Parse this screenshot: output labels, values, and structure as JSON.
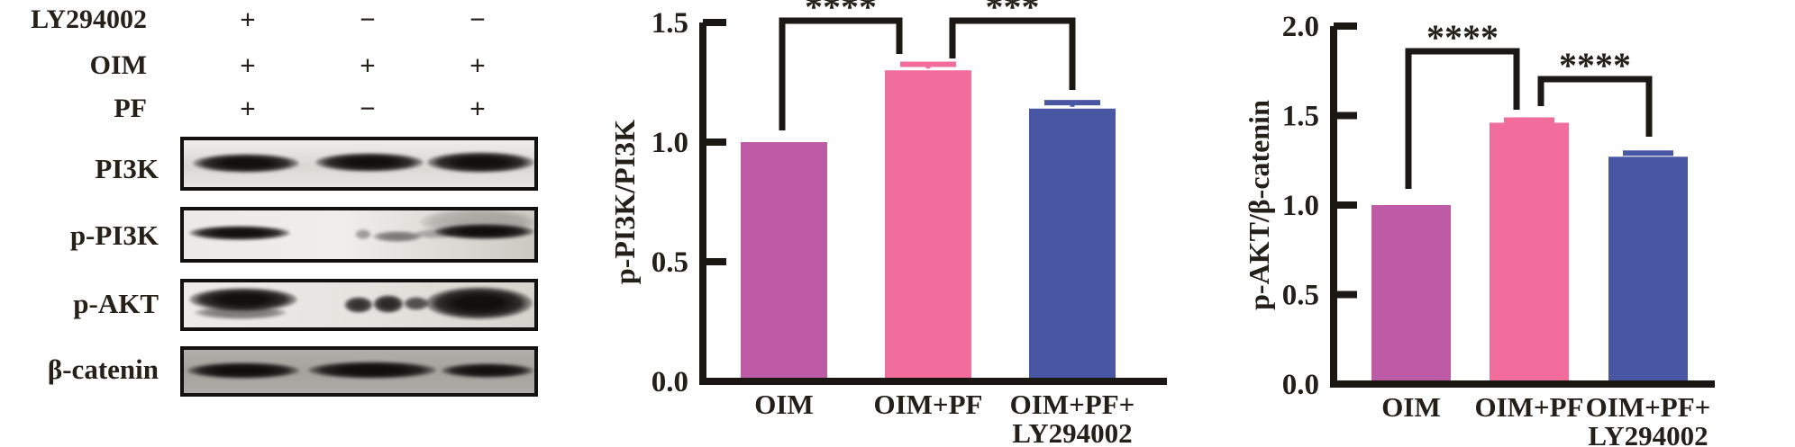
{
  "colors": {
    "ink": "#1b1713",
    "background": "#ffffff"
  },
  "blot": {
    "conditions": [
      {
        "label": "LY294002",
        "signs": [
          "+",
          "−",
          "−"
        ]
      },
      {
        "label": "OIM",
        "signs": [
          "+",
          "+",
          "+"
        ]
      },
      {
        "label": "PF",
        "signs": [
          "+",
          "−",
          "+"
        ]
      }
    ],
    "rows": [
      {
        "label": "PI3K",
        "lanes": [
          "strong",
          "strong",
          "strong"
        ]
      },
      {
        "label": "p-PI3K",
        "lanes": [
          "strong",
          "faint",
          "strong"
        ]
      },
      {
        "label": "p-AKT",
        "lanes": [
          "strong",
          "medium",
          "strong"
        ]
      },
      {
        "label": "β-catenin",
        "lanes": [
          "strong",
          "strong",
          "strong"
        ]
      }
    ]
  },
  "chart_data": [
    {
      "type": "bar",
      "title": "",
      "xlabel": "",
      "ylabel": "p-PI3K/PI3K",
      "categories": [
        "OIM",
        "OIM+PF",
        "OIM+PF+\nLY294002"
      ],
      "values": [
        1.0,
        1.3,
        1.14
      ],
      "errors": [
        0,
        0.025,
        0.025
      ],
      "bar_colors": [
        "#BE5BA7",
        "#F26D9B",
        "#4856A3"
      ],
      "ink": "#1b1713",
      "ylim": [
        0,
        1.5
      ],
      "yticks": [
        "0.0",
        "0.5",
        "1.0",
        "1.5"
      ],
      "grid": false,
      "legend": "none",
      "significance": [
        {
          "between": [
            "OIM",
            "OIM+PF"
          ],
          "label": "****"
        },
        {
          "between": [
            "OIM+PF",
            "OIM+PF+LY294002"
          ],
          "label": "***"
        }
      ]
    },
    {
      "type": "bar",
      "title": "",
      "xlabel": "",
      "ylabel": "p-AKT/β-catenin",
      "categories": [
        "OIM",
        "OIM+PF",
        "OIM+PF+\nLY294002"
      ],
      "values": [
        1.0,
        1.46,
        1.27
      ],
      "errors": [
        0,
        0.015,
        0.02
      ],
      "bar_colors": [
        "#BE5BA7",
        "#F26D9B",
        "#4856A3"
      ],
      "ink": "#1b1713",
      "ylim": [
        0,
        2.0
      ],
      "yticks": [
        "0.0",
        "0.5",
        "1.0",
        "1.5",
        "2.0"
      ],
      "grid": false,
      "legend": "none",
      "significance": [
        {
          "between": [
            "OIM",
            "OIM+PF"
          ],
          "label": "****"
        },
        {
          "between": [
            "OIM+PF",
            "OIM+PF+LY294002"
          ],
          "label": "****"
        }
      ]
    }
  ]
}
